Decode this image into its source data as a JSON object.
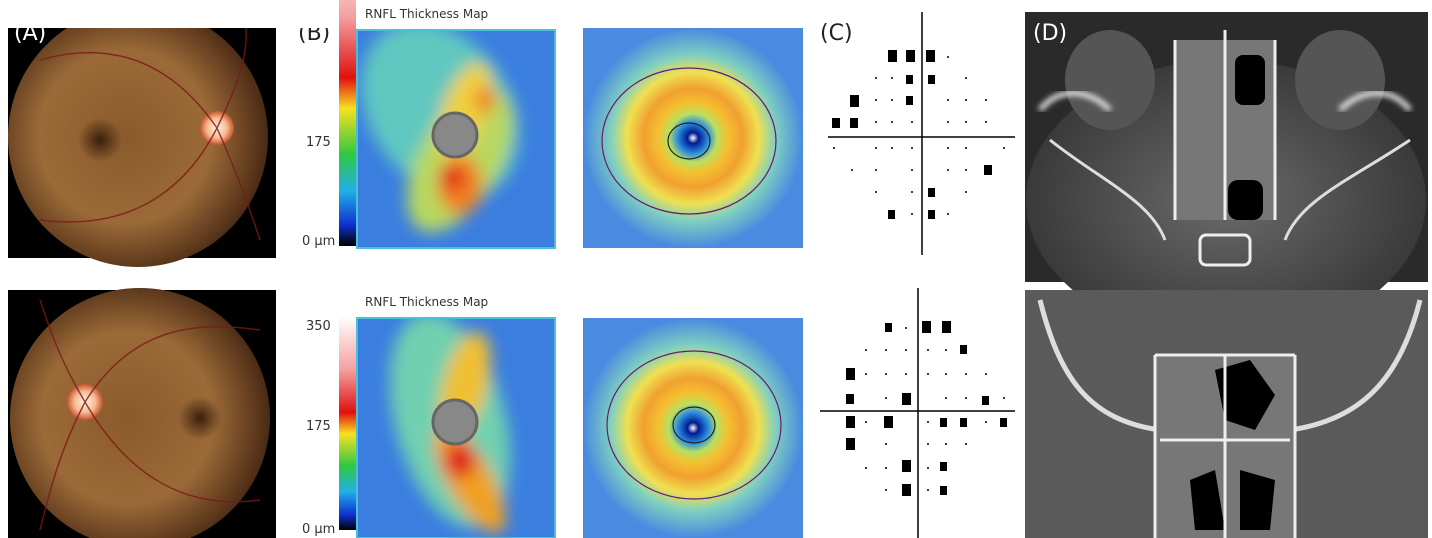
{
  "panels": [
    {
      "label": "(A)"
    },
    {
      "label": "(B)",
      "maps": [
        {
          "title": "RNFL Thickness Map",
          "scale_labels": [
            "175",
            "0 µm"
          ]
        },
        {
          "title": "RNFL Thickness Map",
          "scale_labels": [
            "350",
            "175",
            "0 µm"
          ]
        }
      ]
    },
    {
      "label": "(C)"
    },
    {
      "label": "(D)"
    }
  ]
}
